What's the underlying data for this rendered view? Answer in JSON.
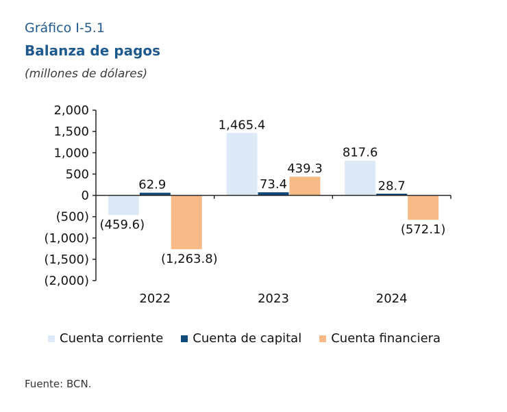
{
  "header": {
    "figure_number": "Gráfico I-5.1",
    "title": "Balanza de pagos",
    "subtitle": "(millones de dólares)"
  },
  "source": "Fuente: BCN.",
  "colors": {
    "Cuenta corriente": "#dce9f7",
    "Cuenta de capital": "#0f4a7a",
    "Cuenta financiera": "#f8bb88",
    "axis": "#222222"
  },
  "chart_data": {
    "type": "bar",
    "title": "Balanza de pagos",
    "subtitle": "(millones de dólares)",
    "categories": [
      "2022",
      "2023",
      "2024"
    ],
    "series": [
      {
        "name": "Cuenta corriente",
        "values": [
          -459.6,
          1465.4,
          817.6
        ],
        "labels": [
          "(459.6)",
          "1,465.4",
          "817.6"
        ]
      },
      {
        "name": "Cuenta de capital",
        "values": [
          62.9,
          73.4,
          28.7
        ],
        "labels": [
          "62.9",
          "73.4",
          "28.7"
        ]
      },
      {
        "name": "Cuenta financiera",
        "values": [
          -1263.8,
          439.3,
          -572.1
        ],
        "labels": [
          "(1,263.8)",
          "439.3",
          "(572.1)"
        ]
      }
    ],
    "ylim": [
      -2000,
      2000
    ],
    "yticks": [
      2000,
      1500,
      1000,
      500,
      0,
      -500,
      -1000,
      -1500,
      -2000
    ],
    "ytick_labels": [
      "2,000",
      "1,500",
      "1,000",
      "500",
      "0",
      "(500)",
      "(1,000)",
      "(1,500)",
      "(2,000)"
    ],
    "xlabel": "",
    "ylabel": "",
    "grid": false,
    "legend_position": "bottom"
  }
}
